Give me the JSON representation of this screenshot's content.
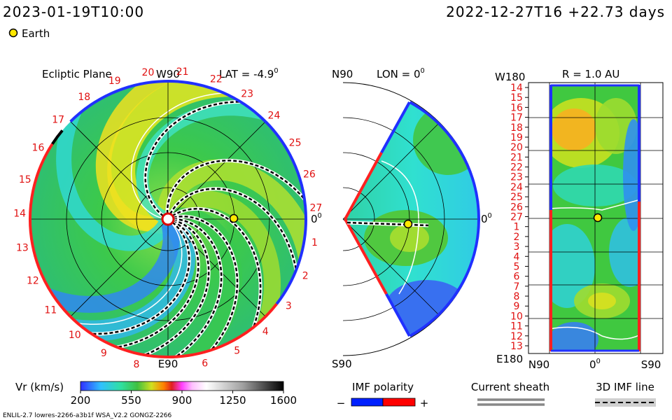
{
  "header": {
    "valid_time": "2023-01-19T10:00",
    "run_time": "2022-12-27T16 +22.73 days",
    "earth_legend": "Earth"
  },
  "ecliptic": {
    "title": "Ecliptic Plane",
    "top_label": "W90",
    "lat": "LAT = -4.9",
    "lat_sup": "0",
    "right_label": "0",
    "right_sup": "0",
    "bottom_label": "E90",
    "day_labels": [
      "19",
      "20",
      "21",
      "22",
      "23",
      "24",
      "25",
      "26",
      "27",
      "1",
      "2",
      "3",
      "4",
      "5",
      "6",
      "8",
      "9",
      "10",
      "11",
      "12",
      "13",
      "14",
      "15",
      "16",
      "17",
      "18"
    ]
  },
  "meridional": {
    "top_label": "N90",
    "lon": "LON = 0",
    "lon_sup": "0",
    "right_label": "0",
    "right_sup": "0",
    "bottom_label": "S90"
  },
  "radial": {
    "top_corner": "W180",
    "title": "R = 1.0 AU",
    "bottom_corner": "E180",
    "x_labels": [
      "N90",
      "0",
      "S90"
    ],
    "x_label_sup": "0",
    "day_labels": [
      "14",
      "15",
      "16",
      "17",
      "18",
      "19",
      "20",
      "21",
      "22",
      "23",
      "24",
      "25",
      "26",
      "27",
      "1",
      "2",
      "3",
      "4",
      "5",
      "6",
      "7",
      "8",
      "9",
      "10",
      "11",
      "12",
      "13"
    ]
  },
  "colorbar": {
    "label": "Vr (km/s)",
    "lim": [
      200,
      1600
    ],
    "ticks": [
      200,
      550,
      900,
      1250,
      1600
    ]
  },
  "legend": {
    "imf_title": "IMF polarity",
    "imf_neg": "−",
    "imf_pos": "+",
    "sheath": "Current sheath",
    "imf_line": "3D IMF line"
  },
  "footer": "ENLIL-2.7 lowres-2266-a3b1f WSA_V2.2 GONGZ-2266"
}
